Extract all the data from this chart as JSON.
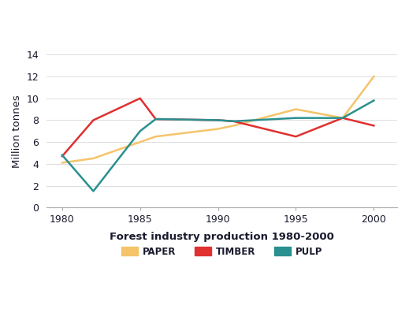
{
  "xlabel": "Forest industry production 1980-2000",
  "ylabel": "Million tonnes",
  "years": [
    1980,
    1982,
    1985,
    1986,
    1990,
    1991,
    1995,
    1998,
    2000
  ],
  "paper": [
    4.1,
    4.5,
    6.0,
    6.5,
    7.2,
    7.5,
    9.0,
    8.2,
    12.0
  ],
  "timber": [
    4.7,
    8.0,
    10.0,
    8.1,
    8.0,
    7.9,
    6.5,
    8.2,
    7.5
  ],
  "pulp": [
    4.8,
    1.5,
    7.0,
    8.1,
    8.0,
    7.9,
    8.2,
    8.2,
    9.8
  ],
  "paper_color": "#f5c46a",
  "timber_color": "#e03030",
  "pulp_color": "#2a9090",
  "bg_color": "#ffffff",
  "title_color": "#1a1a2e",
  "ylim": [
    0,
    14
  ],
  "yticks": [
    0,
    2,
    4,
    6,
    8,
    10,
    12,
    14
  ],
  "xticks": [
    1980,
    1985,
    1990,
    1995,
    2000
  ],
  "title_fontsize": 10.5,
  "axis_label_fontsize": 9.5,
  "tick_fontsize": 9,
  "legend_fontsize": 8.5,
  "linewidth": 1.8
}
